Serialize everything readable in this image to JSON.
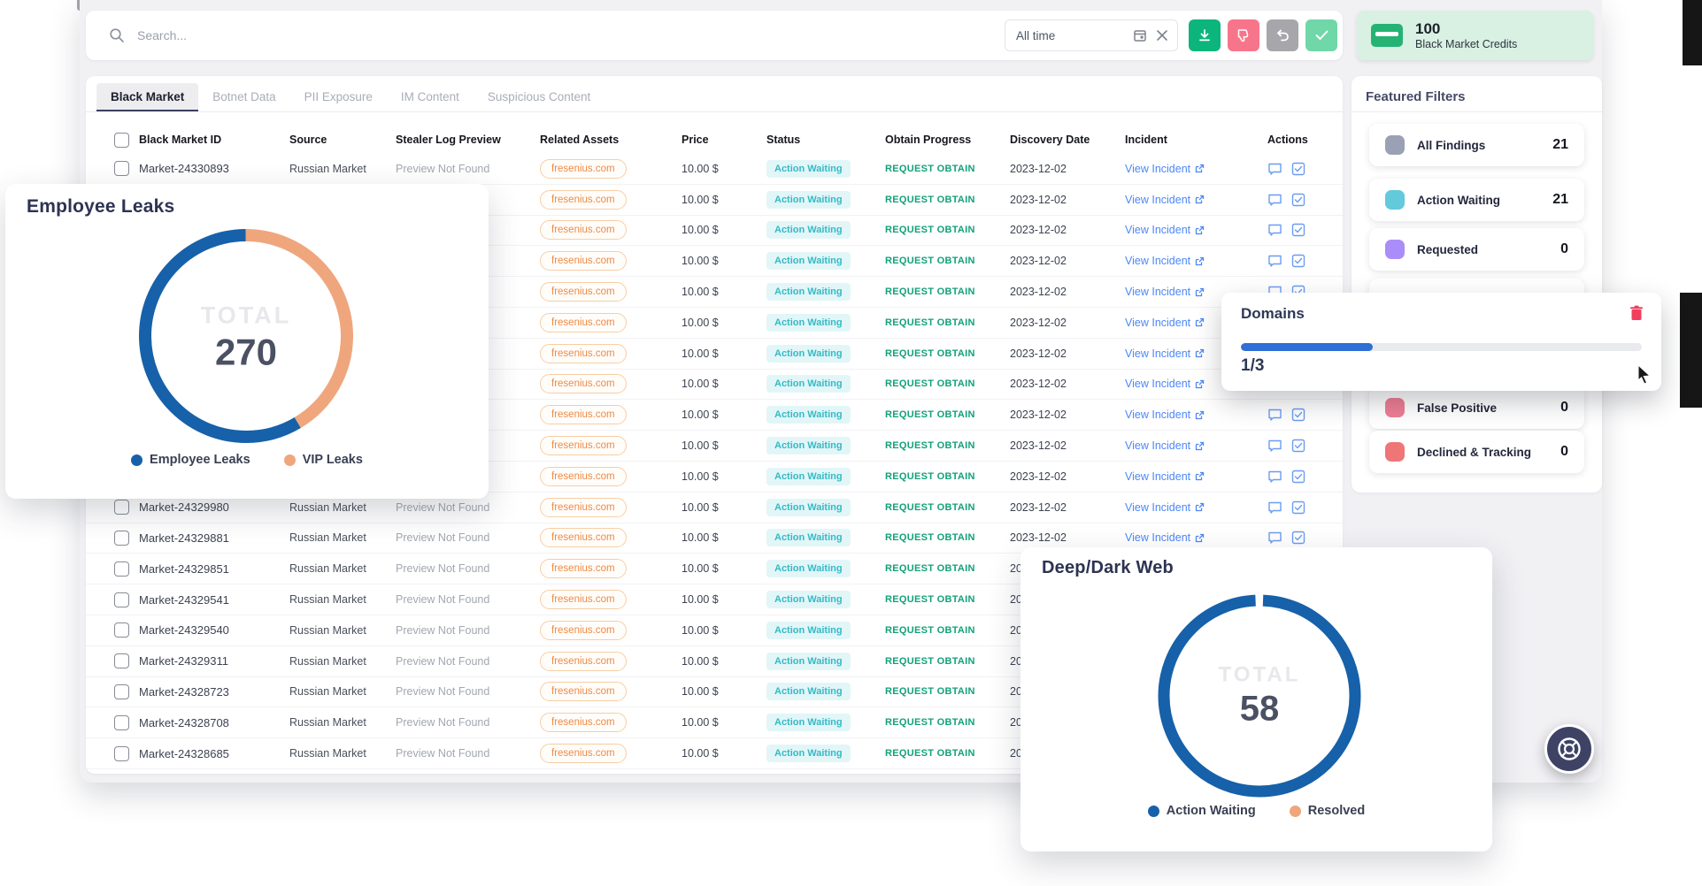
{
  "search": {
    "placeholder": "Search..."
  },
  "toolbar": {
    "date_filter": "All time",
    "buttons": [
      {
        "name": "download",
        "color": "#0cb57c"
      },
      {
        "name": "dislike",
        "color": "#f7758a"
      },
      {
        "name": "undo",
        "color": "#a6a6ab"
      },
      {
        "name": "confirm",
        "color": "#6fd7a8"
      }
    ]
  },
  "credits": {
    "value": "100",
    "label": "Black Market Credits"
  },
  "tabs": [
    {
      "label": "Black Market",
      "active": true
    },
    {
      "label": "Botnet Data",
      "active": false
    },
    {
      "label": "PII Exposure",
      "active": false
    },
    {
      "label": "IM Content",
      "active": false
    },
    {
      "label": "Suspicious Content",
      "active": false
    }
  ],
  "table": {
    "columns": [
      "Black Market ID",
      "Source",
      "Stealer Log Preview",
      "Related Assets",
      "Price",
      "Status",
      "Obtain Progress",
      "Discovery Date",
      "Incident",
      "Actions"
    ],
    "row_defaults": {
      "source": "Russian Market",
      "stealer_log_preview": "Preview Not Found",
      "related_asset": "fresenius.com",
      "price": "10.00 $",
      "status": "Action Waiting",
      "obtain_action": "REQUEST OBTAIN",
      "discovery_date": "2023-12-02",
      "incident_link": "View Incident"
    },
    "rows": [
      {
        "id": "Market-24330893"
      },
      {
        "id": ""
      },
      {
        "id": ""
      },
      {
        "id": ""
      },
      {
        "id": ""
      },
      {
        "id": ""
      },
      {
        "id": ""
      },
      {
        "id": ""
      },
      {
        "id": ""
      },
      {
        "id": ""
      },
      {
        "id": ""
      },
      {
        "id": "Market-24329980"
      },
      {
        "id": "Market-24329881"
      },
      {
        "id": "Market-24329851"
      },
      {
        "id": "Market-24329541"
      },
      {
        "id": "Market-24329540"
      },
      {
        "id": "Market-24329311"
      },
      {
        "id": "Market-24328723"
      },
      {
        "id": "Market-24328708"
      },
      {
        "id": "Market-24328685"
      }
    ]
  },
  "sidebar": {
    "title": "Featured Filters",
    "filters": [
      {
        "label": "All Findings",
        "count": "21",
        "color": "#9ba1b4"
      },
      {
        "label": "Action Waiting",
        "count": "21",
        "color": "#62cada"
      },
      {
        "label": "Requested",
        "count": "0",
        "color": "#aa8df8"
      },
      {
        "label": "False Positive",
        "count": "0",
        "color": "#ef7e95"
      },
      {
        "label": "Declined & Tracking",
        "count": "0",
        "color": "#ee7676"
      }
    ]
  },
  "cards": {
    "domains": {
      "title": "Domains",
      "progress_label": "1/3",
      "progress_pct": 33,
      "trash_color": "#f23f5d",
      "bar_color": "#2f6fd6"
    }
  },
  "chart_data": [
    {
      "type": "pie",
      "title": "Employee Leaks",
      "labels": [
        "Employee Leaks",
        "VIP Leaks"
      ],
      "values": [
        158,
        112
      ],
      "colors": [
        "#1661a9",
        "#efa67d"
      ],
      "total_label": "TOTAL",
      "total": "270"
    },
    {
      "type": "pie",
      "title": "Deep/Dark Web",
      "labels": [
        "Action Waiting",
        "Resolved"
      ],
      "values": [
        58,
        0
      ],
      "colors": [
        "#1661a9",
        "#efa67d"
      ],
      "total_label": "TOTAL",
      "total": "58"
    }
  ]
}
